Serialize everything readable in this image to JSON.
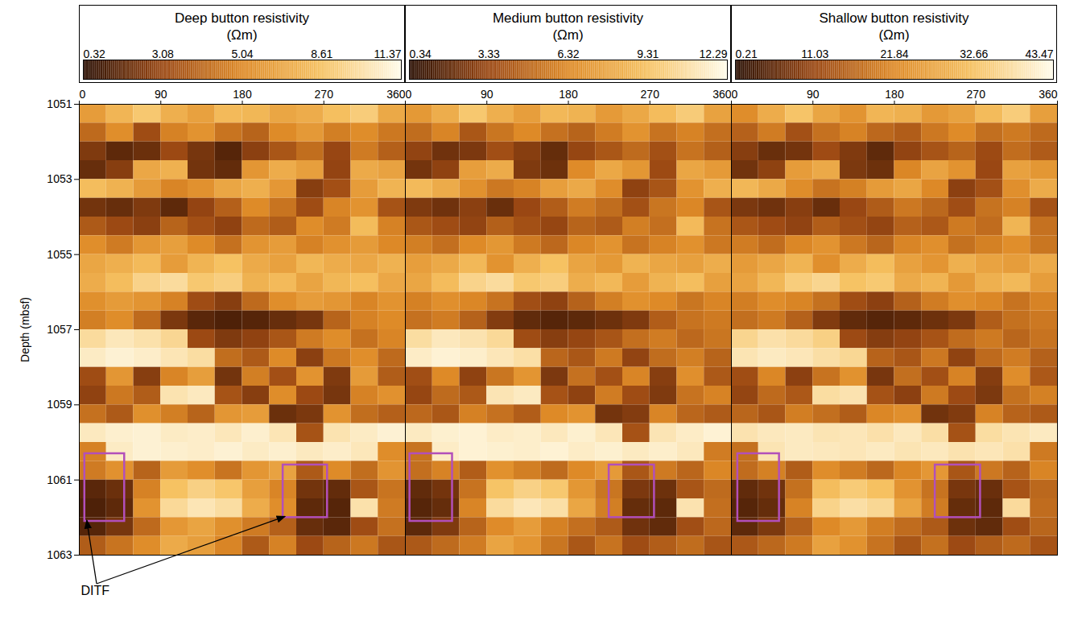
{
  "chart_data": [
    {
      "type": "heatmap",
      "title": "Deep button resistivity",
      "unit": "(Ωm)",
      "xlim": [
        0,
        360
      ],
      "xticks": [
        0,
        90,
        180,
        270,
        360
      ],
      "ylim": [
        1051,
        1063
      ],
      "yticks": [
        1051,
        1053,
        1055,
        1057,
        1059,
        1061,
        1063
      ],
      "ylabel": "Depth (mbsf)",
      "colorbar": {
        "ticks": [
          0.32,
          3.08,
          5.04,
          8.61,
          11.37
        ]
      },
      "x": [
        15,
        45,
        75,
        105,
        135,
        165,
        195,
        225,
        255,
        285,
        315,
        345
      ],
      "y": [
        1051.25,
        1051.75,
        1052.25,
        1052.75,
        1053.25,
        1053.75,
        1054.25,
        1054.75,
        1055.25,
        1055.75,
        1056.25,
        1056.75,
        1057.25,
        1057.75,
        1058.25,
        1058.75,
        1059.25,
        1059.75,
        1060.25,
        1060.75,
        1061.25,
        1061.75,
        1062.25,
        1062.75
      ],
      "cells": [
        [
          6.2,
          7.8,
          8.9,
          7.4,
          6.5,
          8.1,
          7.9,
          6.8,
          7.2,
          8.4,
          9.1,
          7.0
        ],
        [
          4.1,
          5.3,
          3.2,
          4.8,
          5.6,
          4.4,
          3.9,
          5.1,
          6.0,
          4.7,
          5.2,
          4.5
        ],
        [
          2.4,
          1.6,
          1.9,
          3.1,
          2.2,
          1.4,
          2.7,
          3.5,
          4.2,
          3.0,
          4.6,
          3.8
        ],
        [
          1.8,
          2.6,
          6.9,
          7.5,
          2.1,
          1.7,
          5.8,
          7.2,
          6.4,
          2.9,
          7.1,
          6.6
        ],
        [
          8.3,
          7.6,
          6.1,
          4.9,
          5.5,
          6.8,
          7.4,
          5.9,
          2.6,
          3.3,
          6.2,
          7.7
        ],
        [
          2.1,
          1.8,
          2.4,
          1.6,
          2.9,
          3.8,
          5.1,
          4.4,
          3.2,
          4.9,
          5.6,
          3.4
        ],
        [
          3.6,
          3.1,
          2.7,
          3.9,
          3.3,
          2.8,
          4.1,
          3.7,
          5.2,
          4.6,
          8.2,
          4.8
        ],
        [
          5.3,
          4.6,
          5.8,
          6.4,
          5.1,
          4.3,
          5.7,
          6.2,
          4.8,
          5.5,
          6.1,
          5.0
        ],
        [
          6.8,
          7.4,
          8.1,
          6.2,
          7.7,
          8.6,
          7.1,
          6.5,
          7.9,
          7.2,
          6.9,
          7.6
        ],
        [
          7.2,
          8.3,
          9.4,
          9.8,
          8.9,
          9.2,
          7.6,
          8.1,
          6.7,
          7.9,
          8.4,
          6.9
        ],
        [
          5.4,
          6.1,
          5.7,
          4.8,
          3.2,
          2.6,
          4.1,
          5.3,
          6.2,
          5.8,
          4.9,
          5.6
        ],
        [
          4.7,
          5.2,
          4.1,
          2.3,
          1.5,
          1.2,
          1.4,
          1.8,
          2.2,
          3.9,
          4.8,
          5.1
        ],
        [
          9.8,
          10.4,
          10.1,
          9.6,
          3.1,
          2.4,
          2.8,
          3.5,
          4.6,
          5.2,
          4.3,
          4.9
        ],
        [
          10.6,
          10.9,
          10.7,
          10.3,
          9.9,
          4.2,
          3.6,
          5.1,
          2.7,
          4.5,
          5.3,
          4.1
        ],
        [
          3.2,
          5.8,
          2.6,
          4.9,
          6.3,
          2.1,
          4.7,
          3.3,
          5.6,
          2.4,
          6.1,
          3.7
        ],
        [
          2.8,
          4.5,
          3.7,
          10.2,
          10.5,
          3.4,
          2.6,
          5.2,
          3.1,
          2.2,
          4.8,
          5.5
        ],
        [
          4.3,
          3.6,
          5.4,
          4.7,
          3.9,
          5.8,
          6.2,
          1.9,
          2.3,
          5.6,
          4.2,
          3.8
        ],
        [
          10.5,
          10.8,
          10.9,
          10.6,
          10.7,
          10.4,
          10.8,
          10.3,
          3.4,
          10.2,
          10.6,
          10.9
        ],
        [
          4.8,
          10.6,
          10.9,
          10.8,
          10.7,
          10.9,
          10.6,
          10.8,
          10.5,
          10.7,
          10.4,
          5.2
        ],
        [
          4.6,
          5.5,
          3.9,
          6.1,
          5.3,
          4.4,
          5.8,
          6.6,
          3.6,
          5.1,
          4.2,
          5.7
        ],
        [
          1.5,
          1.9,
          4.8,
          8.6,
          9.3,
          8.8,
          6.4,
          4.9,
          2.1,
          1.7,
          3.5,
          4.4
        ],
        [
          1.2,
          1.6,
          5.6,
          9.7,
          10.3,
          9.9,
          7.2,
          5.3,
          1.6,
          1.4,
          10.1,
          4.6
        ],
        [
          1.4,
          2.2,
          4.1,
          5.9,
          6.7,
          5.4,
          4.6,
          3.8,
          1.8,
          1.5,
          3.2,
          4.3
        ],
        [
          3.7,
          4.4,
          5.2,
          7.1,
          6.3,
          4.9,
          3.6,
          4.8,
          3.1,
          3.9,
          4.5,
          3.5
        ]
      ],
      "boxes": [
        {
          "x1": 6,
          "x2": 50,
          "y1": 1060.3,
          "y2": 1062.1
        },
        {
          "x1": 225,
          "x2": 274,
          "y1": 1060.6,
          "y2": 1062.0
        }
      ],
      "annotations": [
        {
          "text": "DITF"
        }
      ]
    },
    {
      "type": "heatmap",
      "title": "Medium button resistivity",
      "unit": "(Ωm)",
      "xlim": [
        0,
        360
      ],
      "xticks": [
        0,
        90,
        180,
        270,
        360
      ],
      "ylim": [
        1051,
        1063
      ],
      "tick_labels": "x",
      "colorbar": {
        "ticks": [
          0.34,
          3.33,
          6.32,
          9.31,
          12.29
        ]
      },
      "x": [
        15,
        45,
        75,
        105,
        135,
        165,
        195,
        225,
        255,
        285,
        315,
        345
      ],
      "y": [
        1051.25,
        1051.75,
        1052.25,
        1052.75,
        1053.25,
        1053.75,
        1054.25,
        1054.75,
        1055.25,
        1055.75,
        1056.25,
        1056.75,
        1057.25,
        1057.75,
        1058.25,
        1058.75,
        1059.25,
        1059.75,
        1060.25,
        1060.75,
        1061.25,
        1061.75,
        1062.25,
        1062.75
      ],
      "cells": [
        [
          7.1,
          8.2,
          9.6,
          8.3,
          7.4,
          8.8,
          8.5,
          7.2,
          7.9,
          9.0,
          9.8,
          7.6
        ],
        [
          5.0,
          6.1,
          4.0,
          5.4,
          6.3,
          5.2,
          4.6,
          5.7,
          6.8,
          5.3,
          6.0,
          5.1
        ],
        [
          3.1,
          2.2,
          2.5,
          3.6,
          2.8,
          1.9,
          3.2,
          4.0,
          4.9,
          3.7,
          5.3,
          4.4
        ],
        [
          2.3,
          3.0,
          7.4,
          8.1,
          2.6,
          2.1,
          6.4,
          7.9,
          7.0,
          3.4,
          7.8,
          7.2
        ],
        [
          8.9,
          8.1,
          6.7,
          5.5,
          6.0,
          7.4,
          8.0,
          6.5,
          3.0,
          3.9,
          6.8,
          8.3
        ],
        [
          2.6,
          2.2,
          2.9,
          2.0,
          3.3,
          4.3,
          5.7,
          5.0,
          3.7,
          5.4,
          6.2,
          3.9
        ],
        [
          4.0,
          3.5,
          3.1,
          4.4,
          3.7,
          3.2,
          4.6,
          4.2,
          5.8,
          5.1,
          8.9,
          5.3
        ],
        [
          5.8,
          5.1,
          6.3,
          7.0,
          5.6,
          4.8,
          6.2,
          6.8,
          5.3,
          6.0,
          6.7,
          5.5
        ],
        [
          7.4,
          8.0,
          8.8,
          6.8,
          8.3,
          9.3,
          7.7,
          7.1,
          8.5,
          7.8,
          7.5,
          8.2
        ],
        [
          7.8,
          9.0,
          10.2,
          10.6,
          9.6,
          9.9,
          8.2,
          8.8,
          7.3,
          8.5,
          9.1,
          7.5
        ],
        [
          5.9,
          6.6,
          6.2,
          5.3,
          3.6,
          3.0,
          4.5,
          5.8,
          6.7,
          6.3,
          5.4,
          6.1
        ],
        [
          5.2,
          5.7,
          4.5,
          2.7,
          1.8,
          1.5,
          1.7,
          2.1,
          2.6,
          4.3,
          5.3,
          5.6
        ],
        [
          10.7,
          11.3,
          11.0,
          10.5,
          3.5,
          2.8,
          3.2,
          3.9,
          5.1,
          5.7,
          4.8,
          5.4
        ],
        [
          11.5,
          11.8,
          11.6,
          11.2,
          10.8,
          4.7,
          4.0,
          5.6,
          3.1,
          5.0,
          5.8,
          4.6
        ],
        [
          3.6,
          6.3,
          3.0,
          5.4,
          6.9,
          2.5,
          5.2,
          3.7,
          6.1,
          2.8,
          6.6,
          4.1
        ],
        [
          3.2,
          4.9,
          4.1,
          11.1,
          11.4,
          3.8,
          3.0,
          5.7,
          3.5,
          2.6,
          5.3,
          6.0
        ],
        [
          4.8,
          4.0,
          5.9,
          5.2,
          4.3,
          6.3,
          6.8,
          2.3,
          2.7,
          6.1,
          4.7,
          4.2
        ],
        [
          11.4,
          11.7,
          11.8,
          11.5,
          11.6,
          11.3,
          11.7,
          11.2,
          3.8,
          11.1,
          11.5,
          11.8
        ],
        [
          5.3,
          11.5,
          11.8,
          11.7,
          11.6,
          11.8,
          11.5,
          11.7,
          11.4,
          11.6,
          11.3,
          5.7
        ],
        [
          5.1,
          6.0,
          4.3,
          6.7,
          5.8,
          4.9,
          6.3,
          7.2,
          4.0,
          5.6,
          4.7,
          6.2
        ],
        [
          1.8,
          2.3,
          5.3,
          9.4,
          10.1,
          9.6,
          7.0,
          5.4,
          2.5,
          2.1,
          3.9,
          4.9
        ],
        [
          1.5,
          1.9,
          6.1,
          10.6,
          11.2,
          10.8,
          7.8,
          5.8,
          1.9,
          1.7,
          11.0,
          5.1
        ],
        [
          1.7,
          2.6,
          4.6,
          6.4,
          7.3,
          5.9,
          5.1,
          4.2,
          2.2,
          1.8,
          3.6,
          4.8
        ],
        [
          4.1,
          4.9,
          5.7,
          7.7,
          6.9,
          5.4,
          4.0,
          5.3,
          3.5,
          4.3,
          5.0,
          3.9
        ]
      ],
      "boxes": [
        {
          "x1": 5,
          "x2": 52,
          "y1": 1060.3,
          "y2": 1062.1
        },
        {
          "x1": 225,
          "x2": 275,
          "y1": 1060.6,
          "y2": 1062.0
        }
      ]
    },
    {
      "type": "heatmap",
      "title": "Shallow button resistivity",
      "unit": "(Ωm)",
      "xlim": [
        0,
        360
      ],
      "xticks": [
        0,
        90,
        180,
        270,
        360
      ],
      "ylim": [
        1051,
        1063
      ],
      "tick_labels": "x",
      "colorbar": {
        "ticks": [
          0.21,
          11.03,
          21.84,
          32.66,
          43.47
        ]
      },
      "x": [
        15,
        45,
        75,
        105,
        135,
        165,
        195,
        225,
        255,
        285,
        315,
        345
      ],
      "y": [
        1051.25,
        1051.75,
        1052.25,
        1052.75,
        1053.25,
        1053.75,
        1054.25,
        1054.75,
        1055.25,
        1055.75,
        1056.25,
        1056.75,
        1057.25,
        1057.75,
        1058.25,
        1058.75,
        1059.25,
        1059.75,
        1060.25,
        1060.75,
        1061.25,
        1061.75,
        1062.25,
        1062.75
      ],
      "cells": [
        [
          22.5,
          28.4,
          33.1,
          27.0,
          23.8,
          30.2,
          29.1,
          24.7,
          26.4,
          31.3,
          34.6,
          25.9
        ],
        [
          15.2,
          19.6,
          12.4,
          17.8,
          20.7,
          16.3,
          14.5,
          18.9,
          22.1,
          17.4,
          19.3,
          16.6
        ],
        [
          9.1,
          6.2,
          7.3,
          11.6,
          8.4,
          5.3,
          10.2,
          13.0,
          15.6,
          11.3,
          17.1,
          14.2
        ],
        [
          7.0,
          9.8,
          25.3,
          27.9,
          8.1,
          6.6,
          21.4,
          26.7,
          23.5,
          10.9,
          26.2,
          24.3
        ],
        [
          30.6,
          27.8,
          22.4,
          18.1,
          20.3,
          25.1,
          27.2,
          21.7,
          9.6,
          12.4,
          22.9,
          28.3
        ],
        [
          8.0,
          6.9,
          9.2,
          6.1,
          10.8,
          14.3,
          18.9,
          16.2,
          11.9,
          18.0,
          20.6,
          12.7
        ],
        [
          13.4,
          11.6,
          10.1,
          14.5,
          12.2,
          10.4,
          15.2,
          13.7,
          19.2,
          17.0,
          30.1,
          17.8
        ],
        [
          19.6,
          17.1,
          21.4,
          23.6,
          18.9,
          15.9,
          21.1,
          22.9,
          17.7,
          20.3,
          22.6,
          18.5
        ],
        [
          25.2,
          27.3,
          29.9,
          22.9,
          28.4,
          31.6,
          26.2,
          24.0,
          29.1,
          26.6,
          25.5,
          28.1
        ],
        [
          26.6,
          30.6,
          34.7,
          36.2,
          32.8,
          33.9,
          28.1,
          29.9,
          24.7,
          29.2,
          31.0,
          25.5
        ],
        [
          19.9,
          22.5,
          21.0,
          17.7,
          11.8,
          9.6,
          15.1,
          19.6,
          22.9,
          21.4,
          18.1,
          20.7
        ],
        [
          17.4,
          19.2,
          15.1,
          8.5,
          5.5,
          4.4,
          5.2,
          6.6,
          8.1,
          14.4,
          17.7,
          18.9
        ],
        [
          36.2,
          38.4,
          37.3,
          35.4,
          11.4,
          8.9,
          10.3,
          12.9,
          17.0,
          19.2,
          15.9,
          18.1
        ],
        [
          39.1,
          40.2,
          39.5,
          38.0,
          36.6,
          15.5,
          13.3,
          18.9,
          10.0,
          16.6,
          19.6,
          15.1
        ],
        [
          11.8,
          21.4,
          9.6,
          18.1,
          23.3,
          7.7,
          17.4,
          12.2,
          20.7,
          8.9,
          22.5,
          13.7
        ],
        [
          10.4,
          16.6,
          13.7,
          37.7,
          38.8,
          12.6,
          9.6,
          19.2,
          11.4,
          8.1,
          17.7,
          20.3
        ],
        [
          15.9,
          13.3,
          19.9,
          17.4,
          14.4,
          21.4,
          22.9,
          7.0,
          8.5,
          20.7,
          15.5,
          14.0
        ],
        [
          38.8,
          39.9,
          40.2,
          39.1,
          39.5,
          38.4,
          39.9,
          38.0,
          12.6,
          37.7,
          39.1,
          40.2
        ],
        [
          17.7,
          39.1,
          40.2,
          39.9,
          39.5,
          40.2,
          39.1,
          39.9,
          38.8,
          39.5,
          38.4,
          19.2
        ],
        [
          17.0,
          20.3,
          14.4,
          22.5,
          19.6,
          16.2,
          21.4,
          24.4,
          13.3,
          18.9,
          15.5,
          21.0
        ],
        [
          5.5,
          7.0,
          17.7,
          31.7,
          34.3,
          32.5,
          23.6,
          18.1,
          7.7,
          6.3,
          12.9,
          16.2
        ],
        [
          4.4,
          5.9,
          20.7,
          35.8,
          38.0,
          36.6,
          26.6,
          19.6,
          5.9,
          5.2,
          37.3,
          17.0
        ],
        [
          5.2,
          8.1,
          15.1,
          21.8,
          24.7,
          19.9,
          17.0,
          14.0,
          6.6,
          5.5,
          11.8,
          15.9
        ],
        [
          13.7,
          16.2,
          19.2,
          26.2,
          23.3,
          18.1,
          13.3,
          17.7,
          11.4,
          14.4,
          16.6,
          12.9
        ]
      ],
      "boxes": [
        {
          "x1": 7,
          "x2": 53,
          "y1": 1060.3,
          "y2": 1062.1
        },
        {
          "x1": 225,
          "x2": 275,
          "y1": 1060.6,
          "y2": 1062.0
        }
      ]
    }
  ]
}
